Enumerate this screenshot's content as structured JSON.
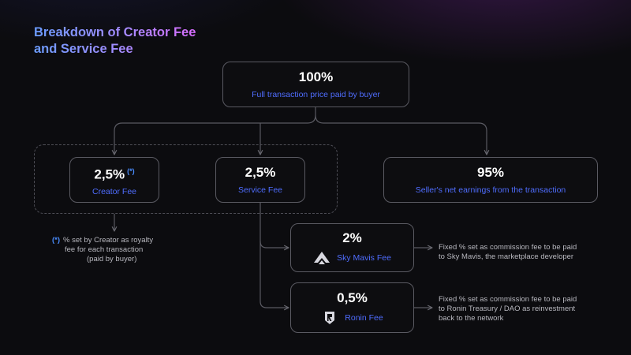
{
  "title": {
    "line1": "Breakdown of Creator Fee",
    "line2": "and Service Fee"
  },
  "root": {
    "value": "100%",
    "label": "Full transaction price paid by buyer"
  },
  "creator": {
    "value": "2,5%",
    "marker": "(*)",
    "label": "Creator Fee"
  },
  "service": {
    "value": "2,5%",
    "label": "Service Fee"
  },
  "seller": {
    "value": "95%",
    "label": "Seller's net earnings from the transaction"
  },
  "skymavis": {
    "value": "2%",
    "label": "Sky Mavis Fee",
    "icon": "sky-mavis-logo-icon"
  },
  "ronin": {
    "value": "0,5%",
    "label": "Ronin Fee",
    "icon": "ronin-logo-icon"
  },
  "creator_note": {
    "marker": "(*)",
    "line1": "% set by Creator as royalty",
    "line2": "fee for each transaction",
    "line3": "(paid by buyer)"
  },
  "skymavis_note": {
    "line1": "Fixed % set as commission fee to be paid",
    "line2": "to Sky Mavis, the marketplace developer"
  },
  "ronin_note": {
    "line1": "Fixed % set as commission fee to be paid",
    "line2": "to Ronin Treasury / DAO as reinvestment",
    "line3": "back to the network"
  },
  "colors": {
    "accent": "#4f6dff",
    "marker": "#4a8dff",
    "line": "#5a5a62"
  }
}
